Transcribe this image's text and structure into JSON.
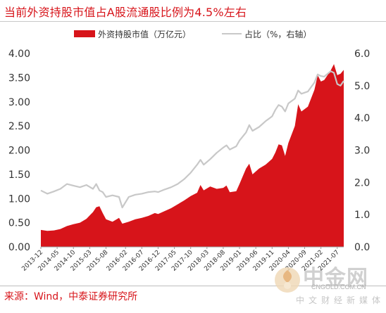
{
  "title": "当前外资持股市值占A股流通股比例为4.5%左右",
  "source": "来源：Wind，中泰证券研究所",
  "watermark": {
    "name": "中金网",
    "site": "CNGOLD.COM.CN",
    "tagline": "中文财经新媒体"
  },
  "colors": {
    "title": "#d7141a",
    "area": "#d7141a",
    "line": "#c8c8c8"
  },
  "chart_data": {
    "type": "area",
    "legend_position": "top",
    "x_labels": [
      "2013-12",
      "2014-05",
      "2014-10",
      "2015-03",
      "2015-08",
      "2016-02",
      "2016-07",
      "2016-12",
      "2017-05",
      "2017-10",
      "2018-03",
      "2018-08",
      "2019-01",
      "2019-06",
      "2019-11",
      "2020-04",
      "2020-09",
      "2021-02",
      "2021-07"
    ],
    "x_range": [
      "2013-12",
      "2021-09"
    ],
    "y_left": {
      "min": 0,
      "max": 4,
      "ticks": [
        "0.00",
        "0.50",
        "1.00",
        "1.50",
        "2.00",
        "2.50",
        "3.00",
        "3.50",
        "4.00"
      ]
    },
    "y_right": {
      "min": 0,
      "max": 6,
      "ticks": [
        "0.0",
        "1.0",
        "2.0",
        "3.0",
        "4.0",
        "5.0",
        "6.0"
      ]
    },
    "grid": false,
    "series": [
      {
        "name": "外资持股市值（万亿元）",
        "kind": "area",
        "axis": "left",
        "points": [
          [
            "2013-12",
            0.35
          ],
          [
            "2014-02",
            0.33
          ],
          [
            "2014-04",
            0.34
          ],
          [
            "2014-06",
            0.37
          ],
          [
            "2014-08",
            0.43
          ],
          [
            "2014-10",
            0.47
          ],
          [
            "2014-12",
            0.5
          ],
          [
            "2015-02",
            0.58
          ],
          [
            "2015-04",
            0.72
          ],
          [
            "2015-05",
            0.82
          ],
          [
            "2015-06",
            0.84
          ],
          [
            "2015-07",
            0.7
          ],
          [
            "2015-08",
            0.57
          ],
          [
            "2015-10",
            0.52
          ],
          [
            "2015-12",
            0.6
          ],
          [
            "2016-01",
            0.48
          ],
          [
            "2016-03",
            0.52
          ],
          [
            "2016-05",
            0.57
          ],
          [
            "2016-07",
            0.6
          ],
          [
            "2016-09",
            0.64
          ],
          [
            "2016-11",
            0.7
          ],
          [
            "2016-12",
            0.68
          ],
          [
            "2017-02",
            0.74
          ],
          [
            "2017-04",
            0.8
          ],
          [
            "2017-06",
            0.88
          ],
          [
            "2017-08",
            0.96
          ],
          [
            "2017-10",
            1.05
          ],
          [
            "2017-12",
            1.12
          ],
          [
            "2018-01",
            1.28
          ],
          [
            "2018-02",
            1.17
          ],
          [
            "2018-04",
            1.25
          ],
          [
            "2018-06",
            1.2
          ],
          [
            "2018-08",
            1.22
          ],
          [
            "2018-09",
            1.27
          ],
          [
            "2018-10",
            1.13
          ],
          [
            "2018-12",
            1.15
          ],
          [
            "2019-01",
            1.3
          ],
          [
            "2019-03",
            1.62
          ],
          [
            "2019-04",
            1.72
          ],
          [
            "2019-05",
            1.5
          ],
          [
            "2019-07",
            1.62
          ],
          [
            "2019-09",
            1.7
          ],
          [
            "2019-11",
            1.82
          ],
          [
            "2019-12",
            1.95
          ],
          [
            "2020-01",
            2.12
          ],
          [
            "2020-02",
            2.1
          ],
          [
            "2020-03",
            1.88
          ],
          [
            "2020-04",
            2.15
          ],
          [
            "2020-06",
            2.5
          ],
          [
            "2020-07",
            2.95
          ],
          [
            "2020-08",
            2.8
          ],
          [
            "2020-10",
            2.9
          ],
          [
            "2020-12",
            3.25
          ],
          [
            "2021-01",
            3.55
          ],
          [
            "2021-02",
            3.42
          ],
          [
            "2021-03",
            3.45
          ],
          [
            "2021-05",
            3.65
          ],
          [
            "2021-06",
            3.78
          ],
          [
            "2021-07",
            3.55
          ],
          [
            "2021-08",
            3.58
          ],
          [
            "2021-09",
            3.66
          ]
        ]
      },
      {
        "name": "占比（%，右轴）",
        "kind": "line",
        "axis": "right",
        "points": [
          [
            "2013-12",
            1.75
          ],
          [
            "2014-02",
            1.65
          ],
          [
            "2014-04",
            1.72
          ],
          [
            "2014-06",
            1.8
          ],
          [
            "2014-08",
            1.95
          ],
          [
            "2014-10",
            1.9
          ],
          [
            "2014-12",
            1.85
          ],
          [
            "2015-02",
            1.92
          ],
          [
            "2015-04",
            1.8
          ],
          [
            "2015-05",
            1.95
          ],
          [
            "2015-06",
            1.75
          ],
          [
            "2015-07",
            1.7
          ],
          [
            "2015-08",
            1.55
          ],
          [
            "2015-10",
            1.6
          ],
          [
            "2015-12",
            1.55
          ],
          [
            "2016-01",
            1.22
          ],
          [
            "2016-03",
            1.55
          ],
          [
            "2016-05",
            1.62
          ],
          [
            "2016-07",
            1.65
          ],
          [
            "2016-09",
            1.7
          ],
          [
            "2016-11",
            1.72
          ],
          [
            "2016-12",
            1.7
          ],
          [
            "2017-02",
            1.78
          ],
          [
            "2017-04",
            1.85
          ],
          [
            "2017-06",
            1.95
          ],
          [
            "2017-08",
            2.1
          ],
          [
            "2017-10",
            2.3
          ],
          [
            "2017-12",
            2.55
          ],
          [
            "2018-01",
            2.7
          ],
          [
            "2018-02",
            2.55
          ],
          [
            "2018-04",
            2.72
          ],
          [
            "2018-06",
            2.92
          ],
          [
            "2018-08",
            3.08
          ],
          [
            "2018-09",
            3.15
          ],
          [
            "2018-10",
            3.02
          ],
          [
            "2018-12",
            3.12
          ],
          [
            "2019-01",
            3.3
          ],
          [
            "2019-03",
            3.55
          ],
          [
            "2019-04",
            3.78
          ],
          [
            "2019-05",
            3.6
          ],
          [
            "2019-07",
            3.72
          ],
          [
            "2019-09",
            3.9
          ],
          [
            "2019-11",
            4.05
          ],
          [
            "2019-12",
            4.25
          ],
          [
            "2020-01",
            4.4
          ],
          [
            "2020-02",
            4.35
          ],
          [
            "2020-03",
            4.2
          ],
          [
            "2020-04",
            4.45
          ],
          [
            "2020-06",
            4.6
          ],
          [
            "2020-07",
            4.85
          ],
          [
            "2020-08",
            4.75
          ],
          [
            "2020-10",
            4.82
          ],
          [
            "2020-12",
            5.1
          ],
          [
            "2021-01",
            5.35
          ],
          [
            "2021-02",
            5.3
          ],
          [
            "2021-03",
            5.28
          ],
          [
            "2021-05",
            5.45
          ],
          [
            "2021-06",
            5.4
          ],
          [
            "2021-07",
            5.05
          ],
          [
            "2021-08",
            5.0
          ],
          [
            "2021-09",
            5.15
          ]
        ]
      }
    ]
  }
}
